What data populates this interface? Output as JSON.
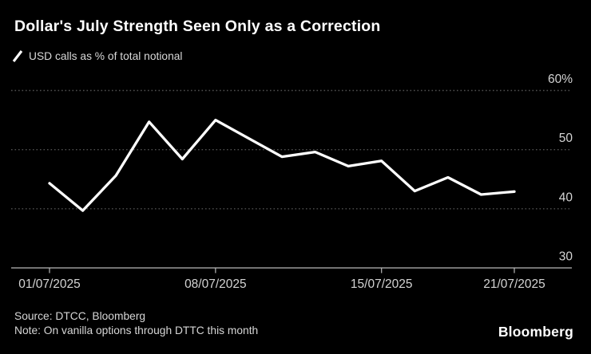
{
  "header": {
    "title": "Dollar's July Strength Seen Only as a Correction",
    "legend": {
      "marker": "line-slash",
      "label": "USD calls as % of total notional"
    }
  },
  "chart_data": {
    "type": "line",
    "title": "Dollar's July Strength Seen Only as a Correction",
    "background": "#000000",
    "text_color": "#d4d4d4",
    "grid_color": "#4f4f4f",
    "axis_color": "#b8b8b8",
    "grid": "horizontal-dotted",
    "legend_position": "top-left",
    "ylim": [
      30,
      60
    ],
    "y_ticks": [
      {
        "value": 30,
        "label": "30"
      },
      {
        "value": 40,
        "label": "40"
      },
      {
        "value": 50,
        "label": "50"
      },
      {
        "value": 60,
        "label": "60%"
      }
    ],
    "x_ticks": [
      {
        "index": 0,
        "label": "01/07/2025"
      },
      {
        "index": 5,
        "label": "08/07/2025"
      },
      {
        "index": 10,
        "label": "15/07/2025"
      },
      {
        "index": 14,
        "label": "21/07/2025"
      }
    ],
    "series": [
      {
        "name": "USD calls as % of total notional",
        "color": "#ffffff",
        "x": [
          "01/07/2025",
          "02/07/2025",
          "03/07/2025",
          "04/07/2025",
          "07/07/2025",
          "08/07/2025",
          "09/07/2025",
          "10/07/2025",
          "11/07/2025",
          "14/07/2025",
          "15/07/2025",
          "16/07/2025",
          "17/07/2025",
          "18/07/2025",
          "21/07/2025"
        ],
        "values": [
          44.3,
          39.7,
          45.6,
          54.7,
          48.4,
          55.0,
          51.9,
          48.8,
          49.6,
          47.2,
          48.1,
          43.0,
          45.3,
          42.4,
          42.9
        ]
      }
    ]
  },
  "footer": {
    "source": "Source: DTCC, Bloomberg",
    "note": "Note: On vanilla options through DTTC this month",
    "brand": "Bloomberg"
  }
}
